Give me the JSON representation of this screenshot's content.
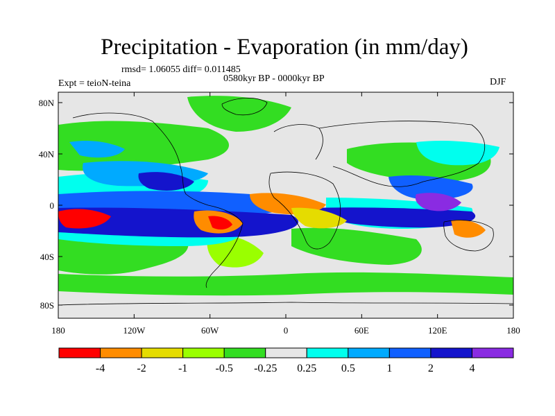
{
  "title": "Precipitation - Evaporation (in mm/day)",
  "stats": "rmsd= 1.06055 diff= 0.011485",
  "period": "0580kyr BP - 0000kyr BP",
  "experiment": "Expt = teioN-teina",
  "season": "DJF",
  "y_axis_labels": [
    "80N",
    "40N",
    "0",
    "40S",
    "80S"
  ],
  "x_axis_labels": [
    "180",
    "120W",
    "60W",
    "0",
    "60E",
    "120E",
    "180"
  ],
  "colorbar": {
    "colors": [
      "#ff0000",
      "#ff8c00",
      "#e5dc00",
      "#9aff00",
      "#33dd22",
      "#e6e6e6",
      "#00ffee",
      "#00aaff",
      "#1060ff",
      "#1414cc",
      "#8a2be2"
    ],
    "labels": [
      "-4",
      "-2",
      "-1",
      "-0.5",
      "-0.25",
      "0.25",
      "0.5",
      "1",
      "2",
      "4"
    ]
  }
}
